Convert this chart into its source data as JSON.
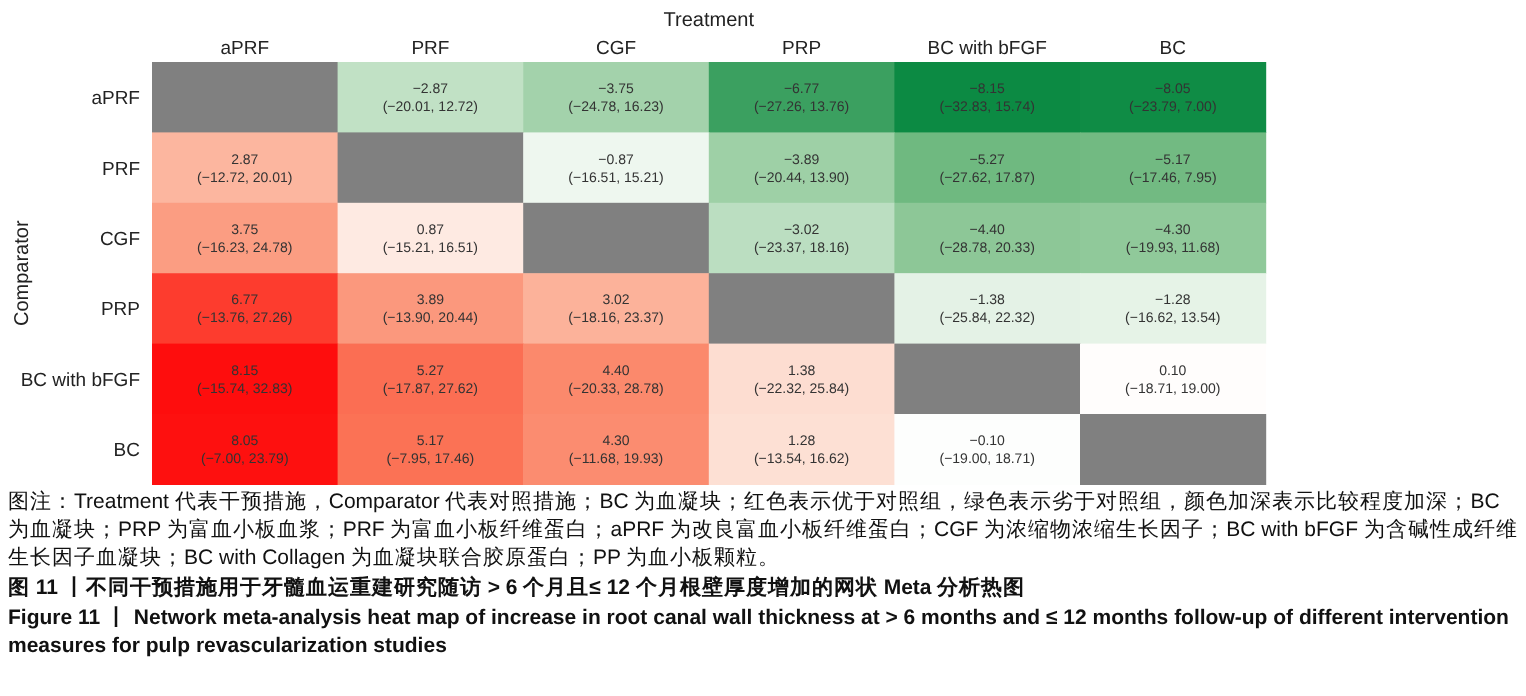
{
  "chart_data": {
    "type": "heatmap",
    "xlabel": "Treatment",
    "ylabel": "Comparator",
    "categories": [
      "aPRF",
      "PRF",
      "CGF",
      "PRP",
      "BC with bFGF",
      "BC"
    ],
    "y_categories": [
      "aPRF",
      "PRF",
      "CGF",
      "PRP",
      "BC with bFGF",
      "BC"
    ],
    "cells": [
      [
        null,
        -2.87,
        -3.75,
        -6.77,
        -8.15,
        -8.05
      ],
      [
        2.87,
        null,
        -0.87,
        -3.89,
        -5.27,
        -5.17
      ],
      [
        3.75,
        0.87,
        null,
        -3.02,
        -4.4,
        -4.3
      ],
      [
        6.77,
        3.89,
        3.02,
        null,
        -1.38,
        -1.28
      ],
      [
        8.15,
        5.27,
        4.4,
        1.38,
        null,
        0.1
      ],
      [
        8.05,
        5.17,
        4.3,
        1.28,
        -0.1,
        null
      ]
    ],
    "cell_labels": [
      [
        null,
        "−2.87",
        "−3.75",
        "−6.77",
        "−8.15",
        "−8.05"
      ],
      [
        "2.87",
        null,
        "−0.87",
        "−3.89",
        "−5.27",
        "−5.17"
      ],
      [
        "3.75",
        "0.87",
        null,
        "−3.02",
        "−4.40",
        "−4.30"
      ],
      [
        "6.77",
        "3.89",
        "3.02",
        null,
        "−1.38",
        "−1.28"
      ],
      [
        "8.15",
        "5.27",
        "4.40",
        "1.38",
        null,
        "0.10"
      ],
      [
        "8.05",
        "5.17",
        "4.30",
        "1.28",
        "−0.10",
        null
      ]
    ],
    "annotations": [
      "(−20.01, 12.72)",
      "(−24.78, 16.23)",
      "(−27.26, 13.76)",
      "(−32.83, 15.74)",
      "(−23.79, 7.00)",
      "(−12.72, 20.01)",
      "(−16.51, 15.21)",
      "(−20.44, 13.90)",
      "(−27.62, 17.87)",
      "(−17.46, 7.95)",
      "(−16.23, 24.78)",
      "(−15.21, 16.51)",
      "(−23.37, 18.16)",
      "(−28.78, 20.33)",
      "(−19.93, 11.68)",
      "(−13.76, 27.26)",
      "(−13.90, 20.44)",
      "(−18.16, 23.37)",
      "(−25.84, 22.32)",
      "(−16.62, 13.54)",
      "(−15.74, 32.83)",
      "(−17.87, 27.62)",
      "(−20.33, 28.78)",
      "(−22.32, 25.84)",
      "(−18.71, 19.00)",
      "(−7.00, 23.79)",
      "(−7.95, 17.46)",
      "(−11.68, 19.93)",
      "(−13.54, 16.62)",
      "(−19.00, 18.71)",
      "图注：Treatment 代表干预措施，Comparator 代表对照措施；BC 为血凝块；红色表示优于对照组，绿色表示劣于对照组，颜色加深表示比较程度加深；BC 为血凝块；PRP 为富血小板血浆；PRF 为富血小板纤维蛋白；aPRF 为改良富血小板纤维蛋白；CGF 为浓缩物浓缩生长因子；BC with bFGF 为含碱性成纤维生长因子血凝块；BC with Collagen 为血凝块联合胶原蛋白；PP 为血小板颗粒。",
      "图 11 丨不同干预措施用于牙髓血运重建研究随访 > 6 个月且≤ 12 个月根壁厚度增加的网状 Meta 分析热图",
      "Figure 11 丨 Network meta-analysis heat map of increase in root canal wall thickness at > 6 months and ≤ 12 months follow-up of different intervention measures for pulp revascularization studies"
    ]
  }
}
